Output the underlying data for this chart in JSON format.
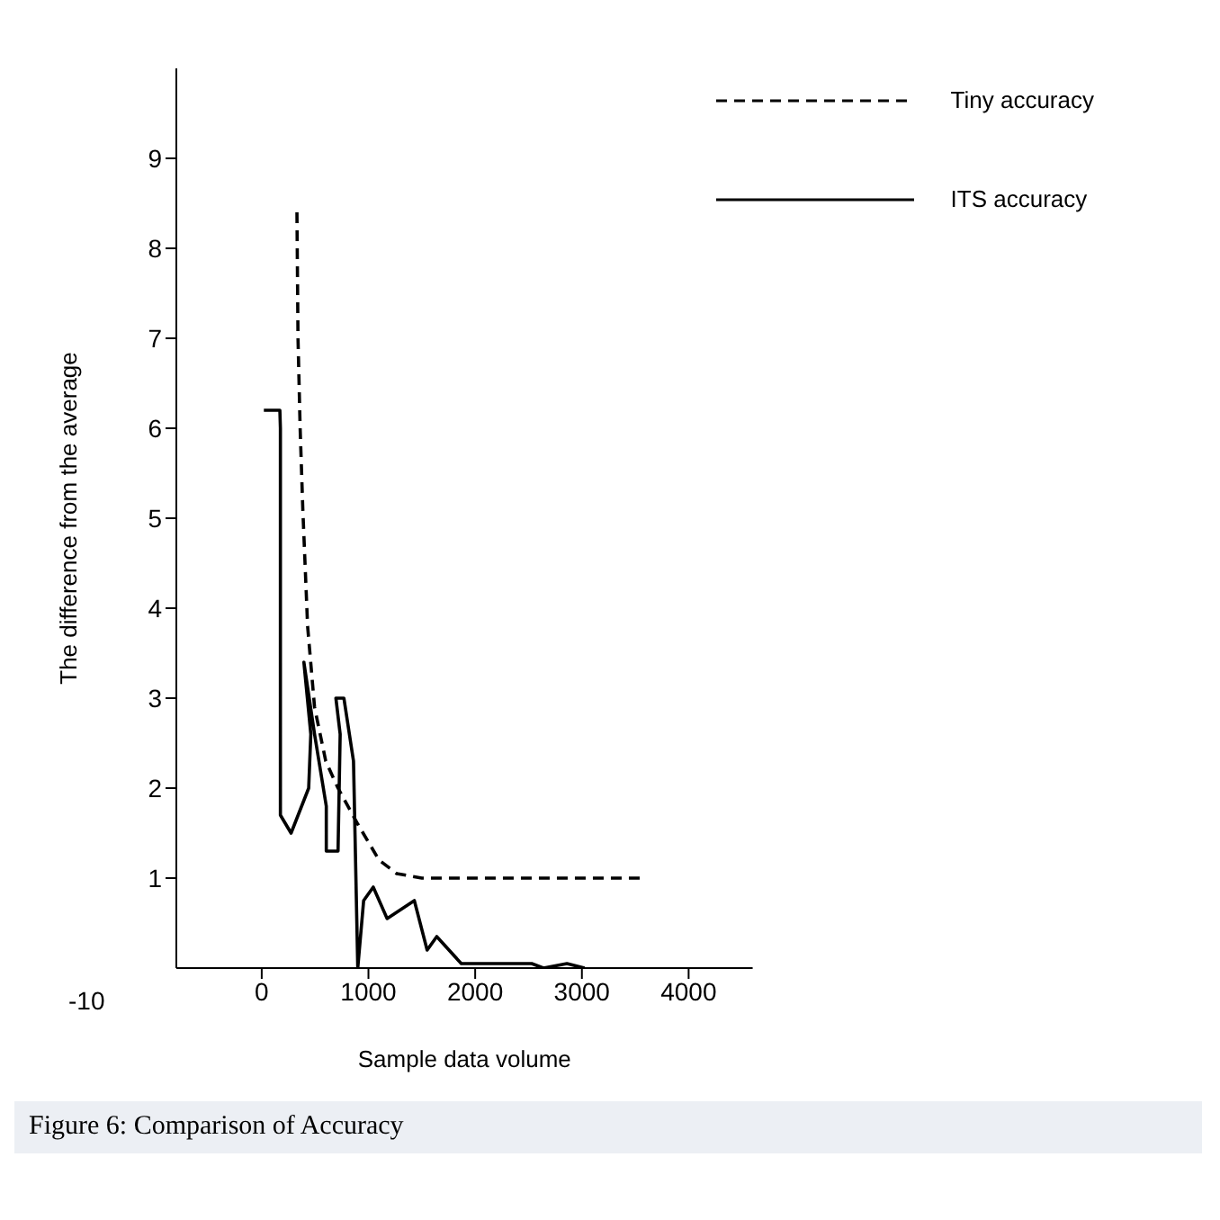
{
  "chart_data": {
    "type": "line",
    "xlabel": "Sample data volume",
    "ylabel": "The difference from the average",
    "xlim": [
      -800,
      4600
    ],
    "ylim": [
      0,
      10
    ],
    "xticks": [
      0,
      1000,
      2000,
      3000,
      4000
    ],
    "yticks": [
      1,
      2,
      3,
      4,
      5,
      6,
      7,
      8,
      9
    ],
    "grid": false,
    "legend": "top right",
    "marker": "none",
    "series": [
      {
        "name": "Tiny accuracy",
        "color": "#000000",
        "line_style": "dashed",
        "x": [
          330,
          340,
          360,
          385,
          430,
          495,
          600,
          715,
          900,
          1100,
          1265,
          1500,
          2000,
          2500,
          3000,
          3600
        ],
        "values": [
          8.4,
          7,
          6,
          5.1,
          3.8,
          2.9,
          2.3,
          2,
          1.6,
          1.2,
          1.05,
          1,
          1,
          1,
          1,
          1
        ]
      },
      {
        "name": "ITS accuracy",
        "color": "#000000",
        "line_style": "solid",
        "x": [
          20,
          170,
          175,
          175,
          275,
          440,
          460,
          395,
          495,
          605,
          605,
          715,
          735,
          695,
          770,
          860,
          900,
          955,
          1045,
          1175,
          1430,
          1550,
          1640,
          1870,
          2530,
          2640,
          2860,
          3025
        ],
        "values": [
          6.2,
          6.2,
          6,
          1.7,
          1.5,
          2,
          2.6,
          3.4,
          2.6,
          1.8,
          1.3,
          1.3,
          2.6,
          3,
          3,
          2.3,
          0,
          0.75,
          0.9,
          0.55,
          0.75,
          0.2,
          0.35,
          0.05,
          0.05,
          0,
          0.05,
          0
        ]
      }
    ],
    "annotations": [
      "-10",
      "Figure 6: Comparison of Accuracy"
    ]
  }
}
